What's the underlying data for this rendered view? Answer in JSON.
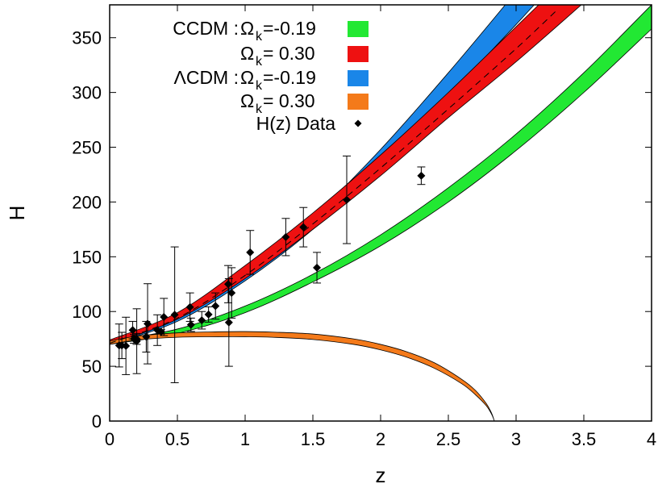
{
  "chart_data": {
    "type": "area",
    "xlabel": "z",
    "ylabel": "H",
    "xlim": [
      0,
      4
    ],
    "ylim": [
      0,
      380
    ],
    "x_ticks": [
      "0",
      "0.5",
      "1",
      "1.5",
      "2",
      "2.5",
      "3",
      "3.5",
      "4"
    ],
    "y_ticks": [
      "0",
      "50",
      "100",
      "150",
      "200",
      "250",
      "300",
      "350"
    ],
    "grid": false,
    "legend_position": "top-left",
    "legend": [
      {
        "prefix": "CCDM  :  ",
        "symbol": "Ω",
        "sub": "k",
        "value": " =-0.19",
        "color": "#22e833"
      },
      {
        "prefix": "",
        "symbol": "Ω",
        "sub": "k",
        "value": " = 0.30",
        "color": "#ee1111"
      },
      {
        "prefix": "ΛCDM  :  ",
        "symbol": "Ω",
        "sub": "k",
        "value": " =-0.19",
        "color": "#1a86e8"
      },
      {
        "prefix": "",
        "symbol": "Ω",
        "sub": "k",
        "value": " = 0.30",
        "color": "#f47a1a"
      },
      {
        "prefix": "H(z) Data",
        "symbol": "",
        "sub": "",
        "value": "",
        "color": "#000000"
      }
    ],
    "bands": [
      {
        "id": "ccdm-minus",
        "color": "#22e833",
        "x": [
          0,
          0.5,
          1,
          1.5,
          2,
          2.5,
          3,
          3.5,
          4
        ],
        "lower": [
          70,
          80,
          99,
          127,
          160,
          200,
          247,
          300,
          358
        ],
        "upper": [
          73,
          84,
          105,
          134,
          170,
          213,
          262,
          318,
          380
        ]
      },
      {
        "id": "lcdm-minus",
        "color": "#1a86e8",
        "x": [
          0,
          0.5,
          1,
          1.5,
          2,
          2.5,
          3,
          3.5,
          3.8
        ],
        "lower": [
          70,
          91,
          128,
          175,
          232,
          297,
          362,
          430,
          470
        ],
        "upper": [
          72,
          95,
          135,
          186,
          248,
          318,
          392,
          468,
          512
        ]
      },
      {
        "id": "ccdm-plus",
        "color": "#ee1111",
        "x": [
          0,
          0.5,
          1,
          1.5,
          2,
          2.5,
          3,
          3.5
        ],
        "lower": [
          70,
          93,
          130,
          175,
          224,
          277,
          328,
          382
        ],
        "upper": [
          74,
          99,
          142,
          190,
          243,
          300,
          360,
          420
        ]
      },
      {
        "id": "lcdm-plus",
        "color": "#f47a1a",
        "x": [
          0,
          0.2,
          0.5,
          0.8,
          1,
          1.2,
          1.5,
          1.8,
          2,
          2.2,
          2.4,
          2.6,
          2.7,
          2.78,
          2.82,
          2.84
        ],
        "lower": [
          70,
          74,
          76.5,
          77,
          77,
          76.5,
          74.5,
          70,
          65,
          58,
          48,
          34,
          24,
          14,
          6,
          0
        ],
        "upper": [
          73,
          77.5,
          80.5,
          81.5,
          81.7,
          81.2,
          79.5,
          75,
          70,
          63,
          53,
          38,
          28,
          16,
          7,
          0
        ]
      }
    ],
    "dashed_line": {
      "x": [
        0,
        0.5,
        1,
        1.5,
        2,
        2.5,
        3,
        3.3
      ],
      "y": [
        71,
        94,
        133,
        180,
        231,
        285,
        340,
        375
      ]
    },
    "points": [
      {
        "z": 0.07,
        "H": 69,
        "err": 19.6
      },
      {
        "z": 0.09,
        "H": 69,
        "err": 12
      },
      {
        "z": 0.12,
        "H": 68.6,
        "err": 26.2
      },
      {
        "z": 0.17,
        "H": 83,
        "err": 8
      },
      {
        "z": 0.179,
        "H": 75,
        "err": 4
      },
      {
        "z": 0.199,
        "H": 75,
        "err": 5
      },
      {
        "z": 0.2,
        "H": 72.9,
        "err": 29.6
      },
      {
        "z": 0.27,
        "H": 77,
        "err": 14
      },
      {
        "z": 0.28,
        "H": 88.8,
        "err": 36.6
      },
      {
        "z": 0.352,
        "H": 83,
        "err": 14
      },
      {
        "z": 0.38,
        "H": 81.5,
        "err": 1.9
      },
      {
        "z": 0.4,
        "H": 95,
        "err": 17
      },
      {
        "z": 0.48,
        "H": 97,
        "err": 62
      },
      {
        "z": 0.593,
        "H": 104,
        "err": 13
      },
      {
        "z": 0.6,
        "H": 87.9,
        "err": 6.1
      },
      {
        "z": 0.68,
        "H": 92,
        "err": 8
      },
      {
        "z": 0.73,
        "H": 97.3,
        "err": 7
      },
      {
        "z": 0.781,
        "H": 105,
        "err": 12
      },
      {
        "z": 0.875,
        "H": 125,
        "err": 17
      },
      {
        "z": 0.88,
        "H": 90,
        "err": 40
      },
      {
        "z": 0.9,
        "H": 117,
        "err": 23
      },
      {
        "z": 1.037,
        "H": 154,
        "err": 20
      },
      {
        "z": 1.3,
        "H": 168,
        "err": 17
      },
      {
        "z": 1.43,
        "H": 177,
        "err": 18
      },
      {
        "z": 1.53,
        "H": 140,
        "err": 14
      },
      {
        "z": 1.75,
        "H": 202,
        "err": 40
      },
      {
        "z": 2.3,
        "H": 224,
        "err": 8
      }
    ]
  }
}
